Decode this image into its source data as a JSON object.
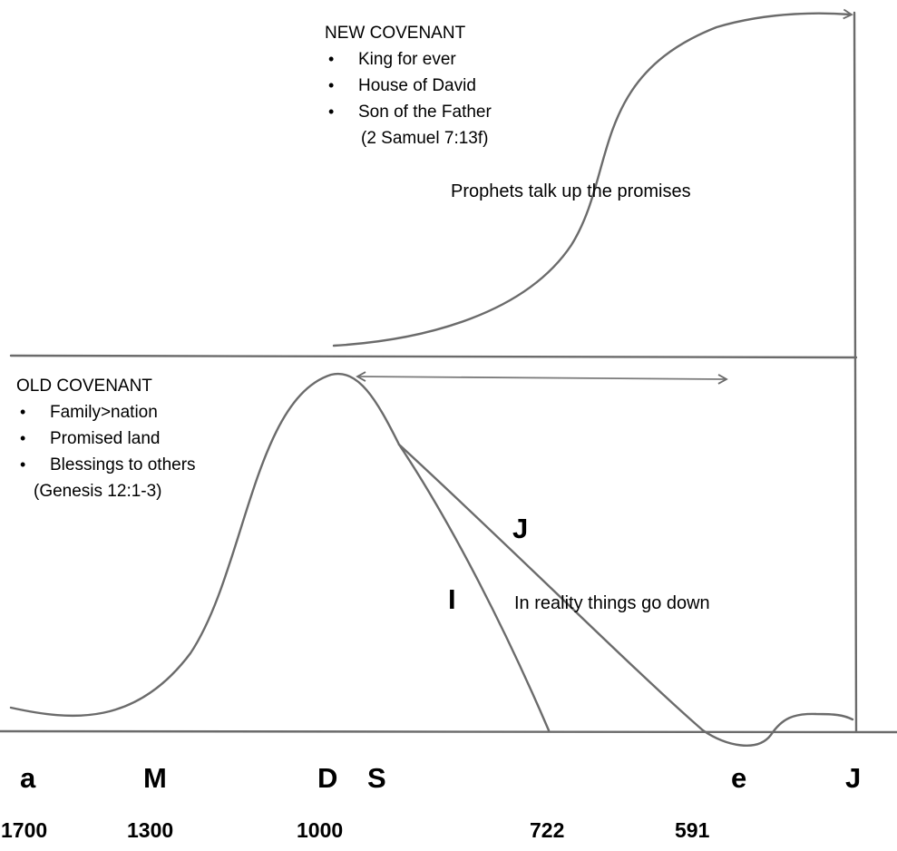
{
  "new_covenant": {
    "heading": "NEW COVENANT",
    "items": [
      "King for ever",
      "House of David",
      "Son of the Father"
    ],
    "reference": "(2 Samuel 7:13f)"
  },
  "old_covenant": {
    "heading": "OLD COVENANT",
    "items": [
      "Family>nation",
      "Promised land",
      "Blessings to others"
    ],
    "reference": "(Genesis 12:1-3)"
  },
  "annotations": {
    "prophets": "Prophets talk up the promises",
    "reality": "In reality things go down",
    "branch_j": "J",
    "branch_i": "I"
  },
  "timeline": {
    "letters": [
      "a",
      "M",
      "D",
      "S",
      "e",
      "J"
    ],
    "years": [
      "1700",
      "1300",
      "1000",
      "722",
      "591"
    ]
  },
  "colors": {
    "ink": "#6b6b6b",
    "text": "#000000"
  }
}
